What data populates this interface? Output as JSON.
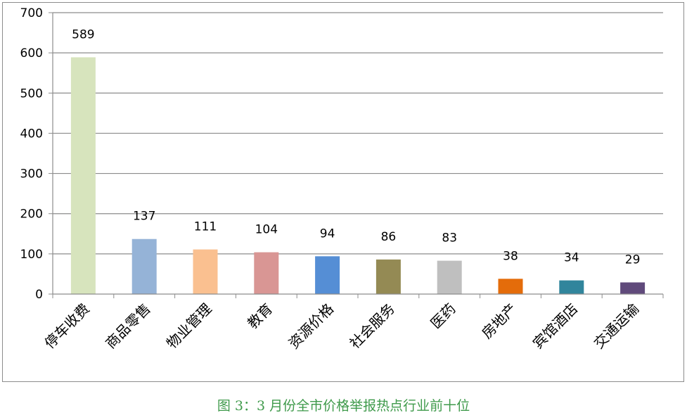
{
  "chart_data": {
    "type": "bar",
    "categories": [
      "停车收费",
      "商品零售",
      "物业管理",
      "教育",
      "资源价格",
      "社会服务",
      "医药",
      "房地产",
      "宾馆酒店",
      "交通运输"
    ],
    "values": [
      589,
      137,
      111,
      104,
      94,
      86,
      83,
      38,
      34,
      29
    ],
    "colors": [
      "#d7e4bd",
      "#95b3d7",
      "#fac090",
      "#d99694",
      "#558ed5",
      "#948a54",
      "#bfbfbf",
      "#e46c0a",
      "#31859c",
      "#604a7b"
    ],
    "ylim": [
      0,
      700
    ],
    "yticks": [
      0,
      100,
      200,
      300,
      400,
      500,
      600,
      700
    ],
    "grid": true,
    "legend": "none",
    "title": "",
    "xlabel": "",
    "ylabel": ""
  },
  "caption": "图 3：3 月份全市价格举报热点行业前十位"
}
